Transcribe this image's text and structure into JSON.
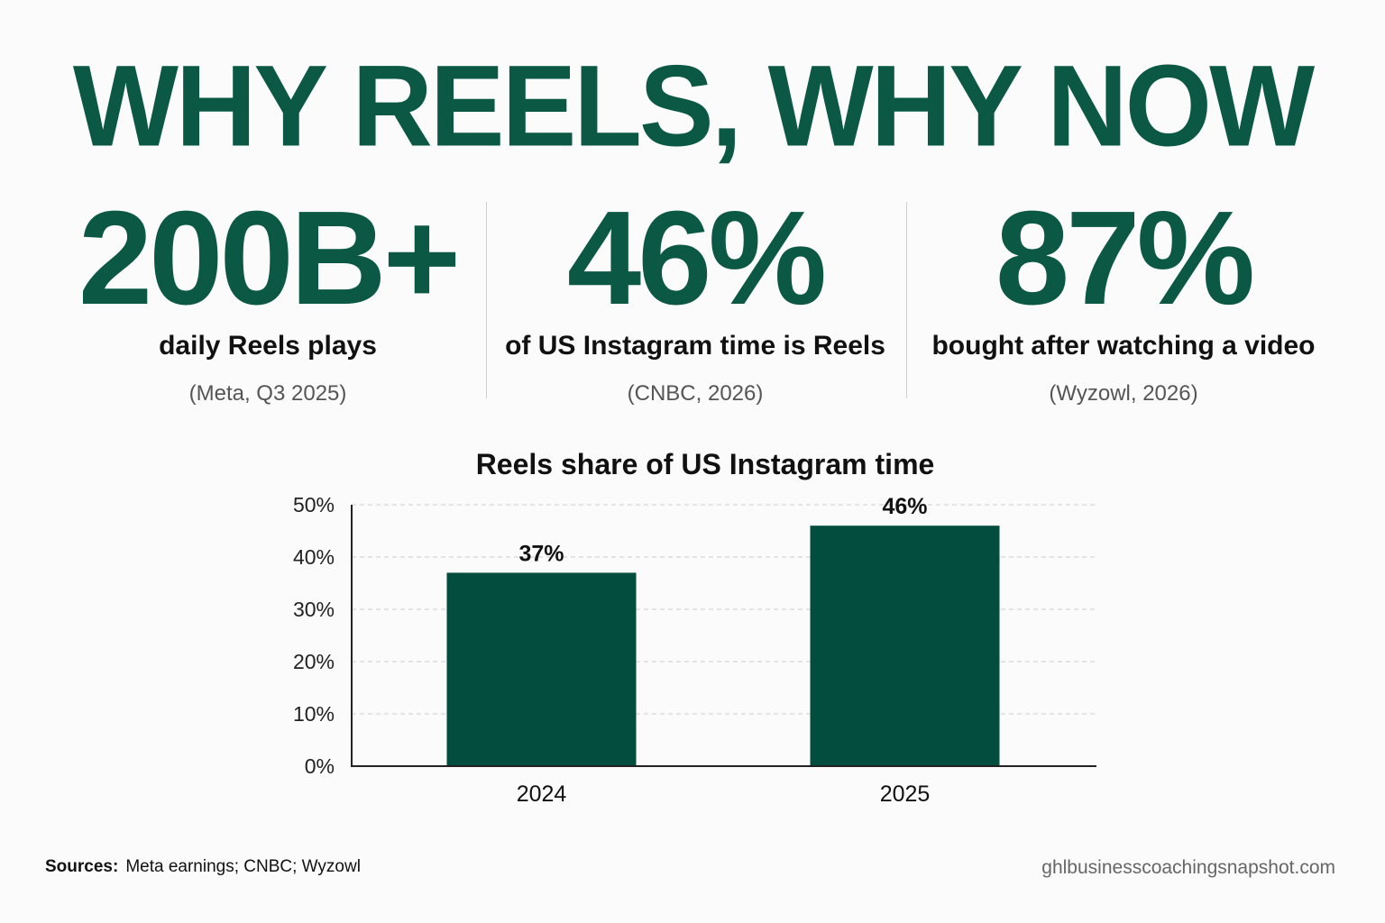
{
  "headline": "WHY REELS, WHY NOW",
  "stats": [
    {
      "value": "200B+",
      "label": "daily Reels plays",
      "source": "(Meta, Q3 2025)"
    },
    {
      "value": "46%",
      "label": "of US Instagram time is Reels",
      "source": "(CNBC, 2026)"
    },
    {
      "value": "87%",
      "label": "bought after watching a video",
      "source": "(Wyzowl, 2026)"
    }
  ],
  "footer": {
    "sources_label": "Sources:",
    "sources_text": "Meta earnings; CNBC; Wyzowl",
    "site": "ghlbusinesscoachingsnapshot.com"
  },
  "colors": {
    "brand_green": "#0b5944",
    "bar_fill": "#034d3e",
    "text_dark": "#111111",
    "gridline": "#cccccc"
  },
  "chart_data": {
    "type": "bar",
    "title": "Reels share of US Instagram time",
    "categories": [
      "2024",
      "2025"
    ],
    "values": [
      37,
      46
    ],
    "data_labels": [
      "37%",
      "46%"
    ],
    "yticks": [
      "0%",
      "10%",
      "20%",
      "30%",
      "40%",
      "50%"
    ],
    "ylim": [
      0,
      50
    ],
    "grid": true,
    "xlabel": "",
    "ylabel": ""
  }
}
